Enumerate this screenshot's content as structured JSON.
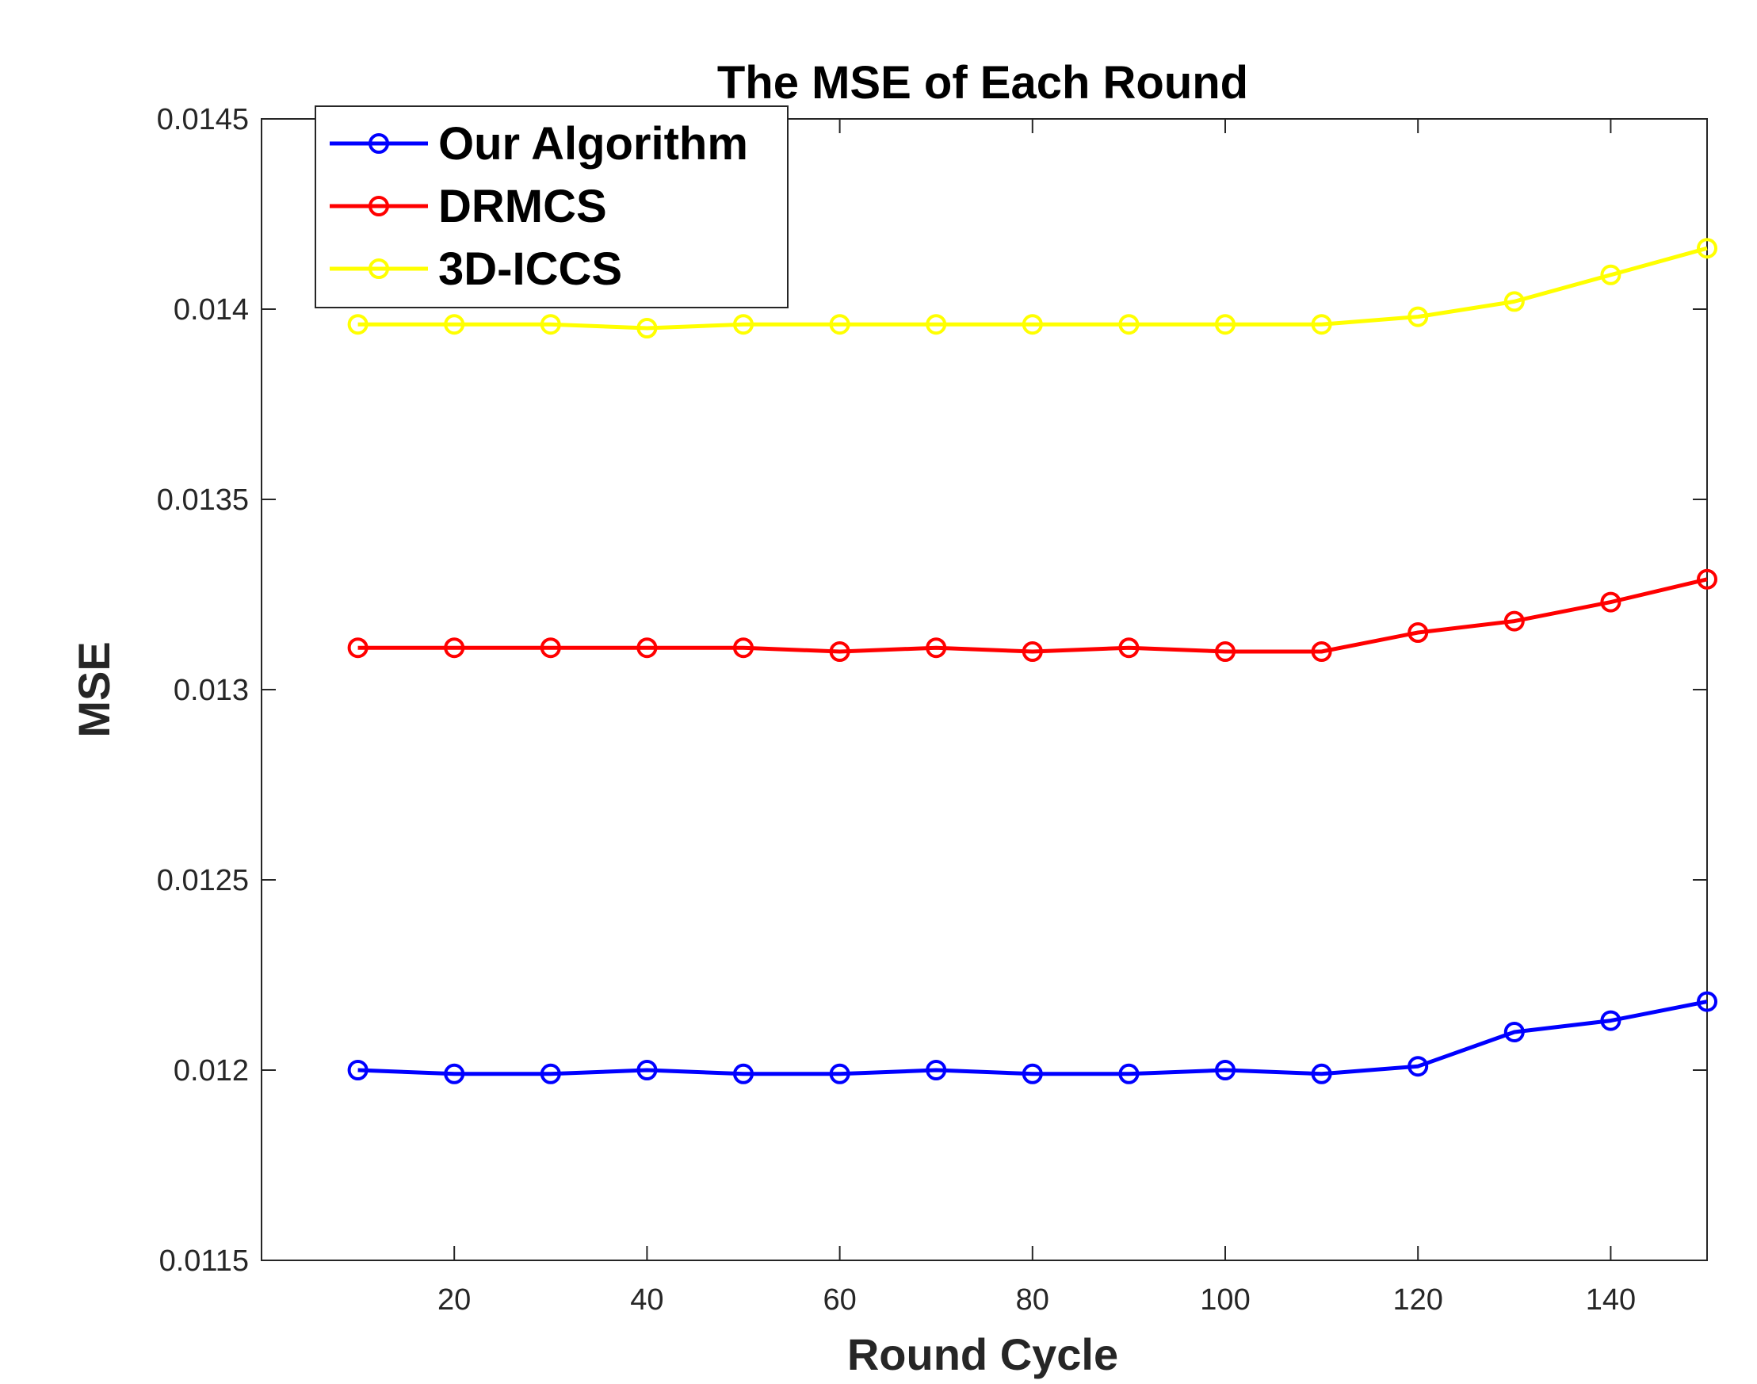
{
  "chart_data": {
    "type": "line",
    "title": "The MSE of Each Round",
    "xlabel": "Round Cycle",
    "ylabel": "MSE",
    "xlim": [
      0,
      150
    ],
    "ylim": [
      0.0115,
      0.0145
    ],
    "xticks": [
      20,
      40,
      60,
      80,
      100,
      120,
      140
    ],
    "xtick_labels": [
      "20",
      "40",
      "60",
      "80",
      "100",
      "120",
      "140"
    ],
    "yticks": [
      0.0115,
      0.012,
      0.0125,
      0.013,
      0.0135,
      0.014,
      0.0145
    ],
    "ytick_labels": [
      "0.0115",
      "0.012",
      "0.0125",
      "0.013",
      "0.0135",
      "0.014",
      "0.0145"
    ],
    "legend_position": "top-left",
    "marker": "circle",
    "x": [
      10,
      20,
      30,
      40,
      50,
      60,
      70,
      80,
      90,
      100,
      110,
      120,
      130,
      140,
      150
    ],
    "series": [
      {
        "name": "Our Algorithm",
        "color": "#0000ff",
        "values": [
          0.012,
          0.01199,
          0.01199,
          0.012,
          0.01199,
          0.01199,
          0.012,
          0.01199,
          0.01199,
          0.012,
          0.01199,
          0.01201,
          0.0121,
          0.01213,
          0.01218
        ]
      },
      {
        "name": "DRMCS",
        "color": "#ff0000",
        "values": [
          0.01311,
          0.01311,
          0.01311,
          0.01311,
          0.01311,
          0.0131,
          0.01311,
          0.0131,
          0.01311,
          0.0131,
          0.0131,
          0.01315,
          0.01318,
          0.01323,
          0.01329
        ]
      },
      {
        "name": "3D-ICCS",
        "color": "#ffff00",
        "values": [
          0.01396,
          0.01396,
          0.01396,
          0.01395,
          0.01396,
          0.01396,
          0.01396,
          0.01396,
          0.01396,
          0.01396,
          0.01396,
          0.01398,
          0.01402,
          0.01409,
          0.01416
        ]
      }
    ]
  }
}
